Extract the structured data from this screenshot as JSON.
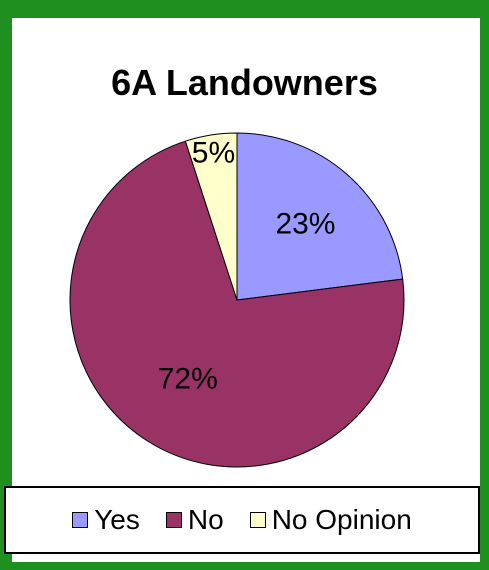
{
  "chart_data": {
    "type": "pie",
    "title": "6A Landowners",
    "slices": [
      {
        "name": "Yes",
        "value": 23,
        "label": "23%",
        "color": "#9999ff"
      },
      {
        "name": "No",
        "value": 72,
        "label": "72%",
        "color": "#993366"
      },
      {
        "name": "No Opinion",
        "value": 5,
        "label": "5%",
        "color": "#ffffcc"
      }
    ],
    "legend_position": "bottom"
  },
  "colors": {
    "background": "#1f8f1f",
    "panel": "#ffffff"
  }
}
